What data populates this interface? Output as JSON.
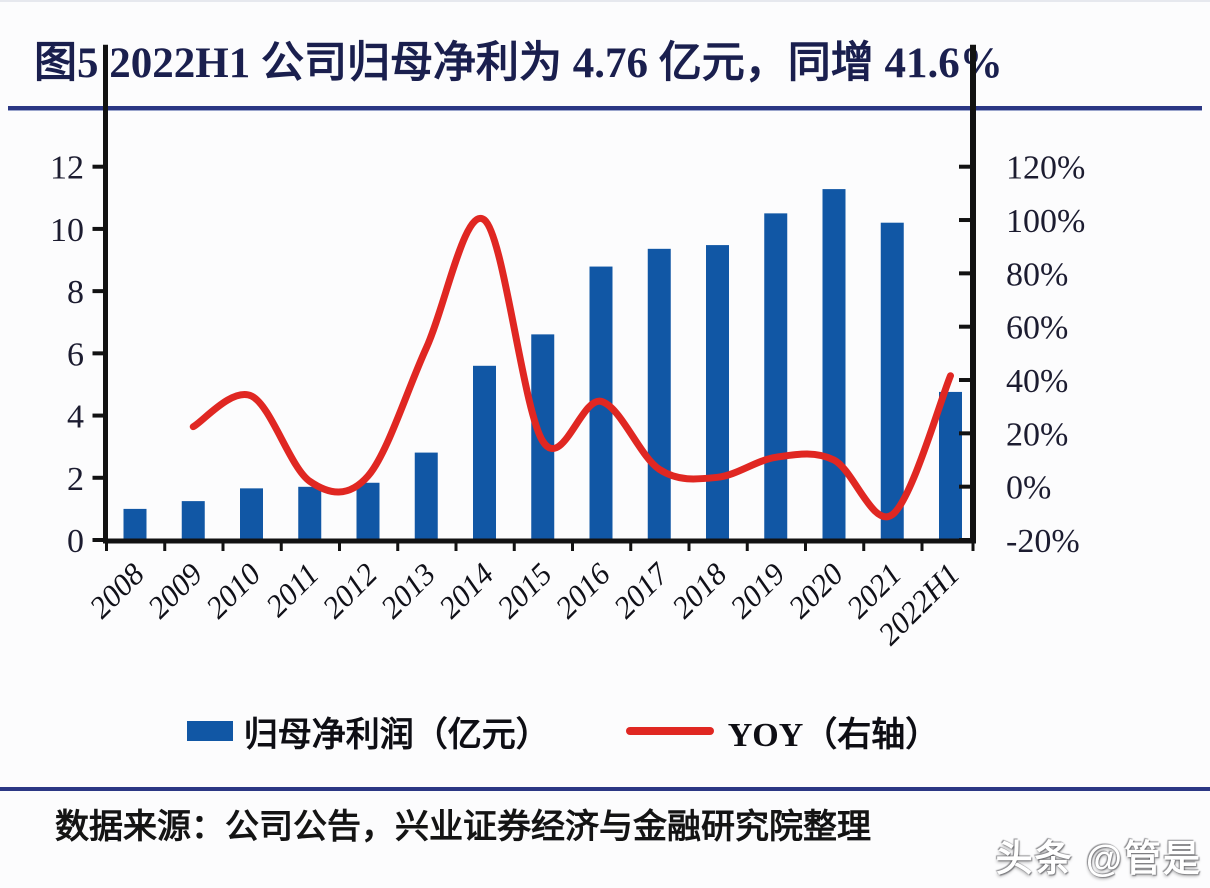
{
  "title": "图5 2022H1 公司归母净利为 4.76 亿元，同增 41.6%",
  "source": "数据来源：公司公告，兴业证券经济与金融研究院整理",
  "watermark": "头条 @管是",
  "colors": {
    "bar": "#1157A5",
    "line": "#E02722",
    "rule": "#2B3784",
    "title_text": "#1A1F4E",
    "axis_line": "#121212",
    "axis_text": "#1C1C30"
  },
  "legend": {
    "bar_label": "归母净利润（亿元）",
    "line_label": "YOY（右轴）"
  },
  "chart_data": {
    "type": "bar+line",
    "categories": [
      "2008",
      "2009",
      "2010",
      "2011",
      "2012",
      "2013",
      "2014",
      "2015",
      "2016",
      "2017",
      "2018",
      "2019",
      "2020",
      "2021",
      "2022H1"
    ],
    "series": [
      {
        "name": "归母净利润（亿元）",
        "type": "bar",
        "axis": "left",
        "values": [
          1.0,
          1.25,
          1.66,
          1.71,
          1.84,
          2.81,
          5.6,
          6.61,
          8.79,
          9.36,
          9.48,
          10.5,
          11.28,
          10.2,
          4.76
        ]
      },
      {
        "name": "YOY（右轴）",
        "type": "line",
        "axis": "right",
        "values_percent": [
          null,
          22.5,
          34,
          2,
          4,
          52,
          100,
          17,
          32,
          6.5,
          3.5,
          11,
          10,
          -10.5,
          41.6
        ]
      }
    ],
    "left_axis": {
      "range": [
        0,
        12
      ],
      "ticks": [
        0,
        2,
        4,
        6,
        8,
        10,
        12
      ]
    },
    "right_axis": {
      "range_percent": [
        -20,
        120
      ],
      "ticks_percent": [
        -20,
        0,
        20,
        40,
        60,
        80,
        100,
        120
      ],
      "tick_labels": [
        "-20%",
        "0%",
        "20%",
        "40%",
        "60%",
        "80%",
        "100%",
        "120%"
      ]
    },
    "grid": false,
    "legend_position": "bottom",
    "highlight": {
      "year": "2022H1",
      "net_profit": "4.76",
      "yoy": "41.6%"
    }
  }
}
